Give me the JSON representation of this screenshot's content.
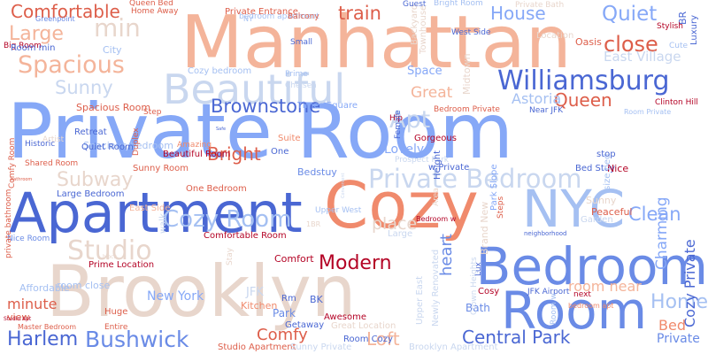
{
  "colors": {
    "background": "#ffffff",
    "palette": [
      "#b40426",
      "#dd5e4a",
      "#f08a6c",
      "#f4b49a",
      "#e8d6cc",
      "#c9d7ef",
      "#a5c0f2",
      "#86a8f7",
      "#6a8be6",
      "#4a67d3"
    ]
  },
  "words": [
    {
      "text": "Private Room",
      "color": "#86a8f7"
    },
    {
      "text": "Brooklyn",
      "color": "#e8d6cc"
    },
    {
      "text": "Manhattan",
      "color": "#f4b49a"
    },
    {
      "text": "Apartment",
      "color": "#4a67d3"
    },
    {
      "text": "Cozy",
      "color": "#f08a6c"
    },
    {
      "text": "NYC",
      "color": "#a5c0f2"
    },
    {
      "text": "Bedroom",
      "color": "#6a8be6"
    },
    {
      "text": "Room",
      "color": "#6a8be6"
    },
    {
      "text": "Beautiful",
      "color": "#c9d7ef"
    },
    {
      "text": "Williamsburg",
      "color": "#4a67d3"
    },
    {
      "text": "Private Bedroom",
      "color": "#c9d7ef"
    },
    {
      "text": "Bushwick",
      "color": "#6a8be6"
    },
    {
      "text": "Central Park",
      "color": "#4a67d3"
    },
    {
      "text": "Modern",
      "color": "#b40426"
    },
    {
      "text": "Cozy Room",
      "color": "#a5c0f2"
    },
    {
      "text": "Studio",
      "color": "#e8d6cc"
    },
    {
      "text": "Spacious",
      "color": "#f4b49a"
    },
    {
      "text": "Sunny",
      "color": "#c9d7ef"
    },
    {
      "text": "Harlem",
      "color": "#4a67d3"
    },
    {
      "text": "Comfy",
      "color": "#dd5e4a"
    },
    {
      "text": "Loft",
      "color": "#f4b49a"
    },
    {
      "text": "Home",
      "color": "#a5c0f2"
    },
    {
      "text": "Large",
      "color": "#f4b49a"
    },
    {
      "text": "min",
      "color": "#e8d6cc"
    },
    {
      "text": "Comfortable",
      "color": "#dd5e4a"
    },
    {
      "text": "train",
      "color": "#dd5e4a"
    },
    {
      "text": "House",
      "color": "#86a8f7"
    },
    {
      "text": "Quiet",
      "color": "#86a8f7"
    },
    {
      "text": "close",
      "color": "#dd5e4a"
    },
    {
      "text": "Queen",
      "color": "#dd5e4a"
    },
    {
      "text": "East Village",
      "color": "#c9d7ef"
    },
    {
      "text": "Astoria",
      "color": "#a5c0f2"
    },
    {
      "text": "Apt",
      "color": "#c9d7ef"
    },
    {
      "text": "Brownstone",
      "color": "#4a67d3"
    },
    {
      "text": "Bright",
      "color": "#dd5e4a"
    },
    {
      "text": "Subway",
      "color": "#e8d6cc"
    },
    {
      "text": "Charming",
      "color": "#86a8f7"
    },
    {
      "text": "Cozy Private",
      "color": "#4a67d3"
    },
    {
      "text": "Clean",
      "color": "#86a8f7"
    },
    {
      "text": "New York",
      "color": "#86a8f7"
    },
    {
      "text": "JFK",
      "color": "#c9d7ef"
    },
    {
      "text": "place",
      "color": "#e8d6cc"
    },
    {
      "text": "minute",
      "color": "#dd5e4a"
    },
    {
      "text": "heart",
      "color": "#6a8be6"
    },
    {
      "text": "room near",
      "color": "#f4b49a"
    },
    {
      "text": "Bed",
      "color": "#f08a6c"
    },
    {
      "text": "Private",
      "color": "#6a8be6"
    },
    {
      "text": "Lovely",
      "color": "#86a8f7"
    },
    {
      "text": "Great",
      "color": "#f4b49a"
    },
    {
      "text": "Space",
      "color": "#86a8f7"
    },
    {
      "text": "Spacious Room",
      "color": "#dd5e4a"
    },
    {
      "text": "City",
      "color": "#a5c0f2"
    },
    {
      "text": "Cozy bedroom",
      "color": "#a5c0f2"
    },
    {
      "text": "Spacious bedroom",
      "color": "#a5c0f2"
    },
    {
      "text": "Bedstuy",
      "color": "#6a8be6"
    },
    {
      "text": "Times Square",
      "color": "#86a8f7"
    },
    {
      "text": "Sunny Room",
      "color": "#dd5e4a"
    },
    {
      "text": "One Bedroom",
      "color": "#dd5e4a"
    },
    {
      "text": "Bed Stuy",
      "color": "#4a67d3"
    },
    {
      "text": "Nice",
      "color": "#b40426"
    },
    {
      "text": "room close",
      "color": "#a5c0f2"
    },
    {
      "text": "East Side",
      "color": "#f4b49a"
    },
    {
      "text": "Affordable",
      "color": "#a5c0f2"
    },
    {
      "text": "view",
      "color": "#dd5e4a"
    },
    {
      "text": "Huge",
      "color": "#dd5e4a"
    },
    {
      "text": "Park",
      "color": "#6a8be6"
    },
    {
      "text": "Stay",
      "color": "#e8d6cc"
    },
    {
      "text": "Sunny",
      "color": "#e8d6cc"
    },
    {
      "text": "Peaceful",
      "color": "#dd5e4a"
    },
    {
      "text": "Garden",
      "color": "#c9d7ef"
    },
    {
      "text": "Greenpoint",
      "color": "#6a8be6"
    },
    {
      "text": "Home Away",
      "color": "#dd5e4a"
    },
    {
      "text": "Queen Bed",
      "color": "#dd5e4a"
    },
    {
      "text": "Private Bath",
      "color": "#e8d6cc"
    },
    {
      "text": "Private Entrance",
      "color": "#dd5e4a"
    },
    {
      "text": "bedroom apartment",
      "color": "#a5c0f2"
    },
    {
      "text": "Balcony",
      "color": "#dd5e4a"
    },
    {
      "text": "Bright Room",
      "color": "#a5c0f2"
    },
    {
      "text": "Location",
      "color": "#e8d6cc"
    },
    {
      "text": "Oasis",
      "color": "#dd5e4a"
    },
    {
      "text": "BR",
      "color": "#4a67d3"
    },
    {
      "text": "Luxury",
      "color": "#4a67d3"
    },
    {
      "text": "Cute",
      "color": "#a5c0f2"
    },
    {
      "text": "Room Private",
      "color": "#a5c0f2"
    },
    {
      "text": "Clinton Hill",
      "color": "#b40426"
    },
    {
      "text": "Near JFK",
      "color": "#4a67d3"
    },
    {
      "text": "Convenient",
      "color": "#c9d7ef"
    },
    {
      "text": "Upper West",
      "color": "#a5c0f2"
    },
    {
      "text": "Park Slope",
      "color": "#86a8f7"
    },
    {
      "text": "Prospect Park",
      "color": "#c9d7ef"
    },
    {
      "text": "w Private",
      "color": "#4a67d3"
    },
    {
      "text": "Midtown",
      "color": "#e8d6cc"
    },
    {
      "text": "Gorgeous",
      "color": "#b40426"
    },
    {
      "text": "Suite",
      "color": "#f08a6c"
    },
    {
      "text": "One",
      "color": "#4a67d3"
    },
    {
      "text": "Step",
      "color": "#dd5e4a"
    },
    {
      "text": "Duplex",
      "color": "#dd5e4a"
    },
    {
      "text": "Artist",
      "color": "#e8d6cc"
    },
    {
      "text": "Historic",
      "color": "#4a67d3"
    },
    {
      "text": "Shared Room",
      "color": "#dd5e4a"
    },
    {
      "text": "Comfy Room",
      "color": "#dd5e4a"
    },
    {
      "text": "Safe",
      "color": "#4a67d3"
    },
    {
      "text": "Large Bedroom",
      "color": "#4a67d3"
    },
    {
      "text": "Beautiful Room",
      "color": "#b40426"
    },
    {
      "text": "Amazing",
      "color": "#f08a6c"
    },
    {
      "text": "walk",
      "color": "#c9d7ef"
    },
    {
      "text": "Nice Room",
      "color": "#6a8be6"
    },
    {
      "text": "Comfortable Room",
      "color": "#b40426"
    },
    {
      "text": "Prime Location",
      "color": "#b40426"
    },
    {
      "text": "block",
      "color": "#e8d6cc"
    },
    {
      "text": "Entire",
      "color": "#dd5e4a"
    },
    {
      "text": "Master Bedroom",
      "color": "#dd5e4a"
    },
    {
      "text": "Studio Apt",
      "color": "#b40426"
    },
    {
      "text": "Studio Apartment",
      "color": "#dd5e4a"
    },
    {
      "text": "Bath",
      "color": "#6a8be6"
    },
    {
      "text": "Cosy",
      "color": "#b40426"
    },
    {
      "text": "Sunny Private",
      "color": "#c9d7ef"
    },
    {
      "text": "Great Location",
      "color": "#e8d6cc"
    },
    {
      "text": "JFK Airport",
      "color": "#4a67d3"
    },
    {
      "text": "next",
      "color": "#b40426"
    },
    {
      "text": "bedroom apt",
      "color": "#f08a6c"
    },
    {
      "text": "neighborhood",
      "color": "#4a67d3"
    },
    {
      "text": "Newly Renovated",
      "color": "#c9d7ef"
    },
    {
      "text": "Upper East",
      "color": "#c9d7ef"
    },
    {
      "text": "Crown Heights",
      "color": "#c9d7ef"
    },
    {
      "text": "Large",
      "color": "#c9d7ef"
    },
    {
      "text": "Room w",
      "color": "#a5c0f2"
    },
    {
      "text": "Stylish",
      "color": "#b40426"
    },
    {
      "text": "Big Room",
      "color": "#b40426"
    },
    {
      "text": "Room min",
      "color": "#4a67d3"
    },
    {
      "text": "Backyard",
      "color": "#e8d6cc"
    },
    {
      "text": "Small",
      "color": "#4a67d3"
    },
    {
      "text": "Bedroom w",
      "color": "#b40426"
    },
    {
      "text": "Rm",
      "color": "#4a67d3"
    },
    {
      "text": "Kitchen",
      "color": "#f08a6c"
    },
    {
      "text": "Comfort",
      "color": "#b40426"
    },
    {
      "text": "private bathroom",
      "color": "#dd5e4a"
    },
    {
      "text": "bathroom",
      "color": "#dd5e4a"
    },
    {
      "text": "Guest",
      "color": "#4a67d3"
    },
    {
      "text": "West Side",
      "color": "#4a67d3"
    },
    {
      "text": "Townhouse",
      "color": "#e8d6cc"
    },
    {
      "text": "NY",
      "color": "#a5c0f2"
    },
    {
      "text": "Retreat",
      "color": "#4a67d3"
    },
    {
      "text": "Quiet Room",
      "color": "#4a67d3"
    },
    {
      "text": "Room Cozy",
      "color": "#4a67d3"
    },
    {
      "text": "Getaway",
      "color": "#4a67d3"
    },
    {
      "text": "Awesome",
      "color": "#b40426"
    },
    {
      "text": "Lux",
      "color": "#4a67d3"
    },
    {
      "text": "Brand New",
      "color": "#e8d6cc"
    },
    {
      "text": "BK",
      "color": "#4a67d3"
    },
    {
      "text": "1BR",
      "color": "#e8d6cc"
    },
    {
      "text": "size bed",
      "color": "#a5c0f2"
    },
    {
      "text": "stop",
      "color": "#4a67d3"
    },
    {
      "text": "Hip",
      "color": "#b40426"
    },
    {
      "text": "Female",
      "color": "#4a67d3"
    },
    {
      "text": "Bedroom Private",
      "color": "#dd5e4a"
    },
    {
      "text": "Height",
      "color": "#4a67d3"
    },
    {
      "text": "Area",
      "color": "#e8d6cc"
    },
    {
      "text": "Brooklyn Apartment",
      "color": "#c9d7ef"
    },
    {
      "text": "Steps",
      "color": "#dd5e4a"
    },
    {
      "text": "Chelsea",
      "color": "#c9d7ef"
    },
    {
      "text": "Prime",
      "color": "#a5c0f2"
    }
  ]
}
